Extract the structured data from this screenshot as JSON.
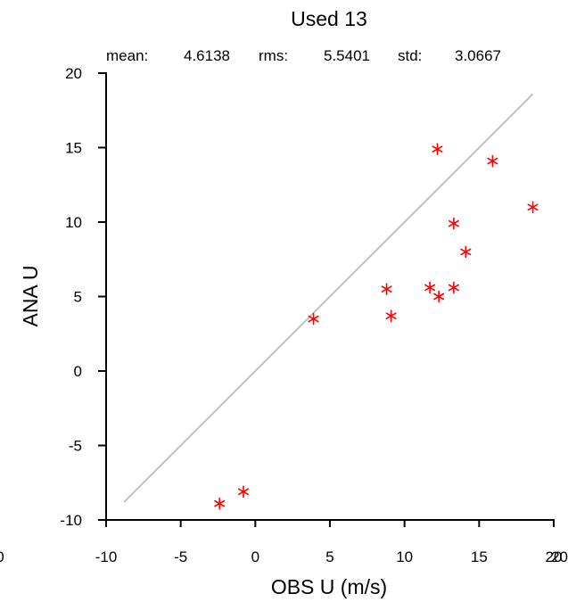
{
  "chart_data": {
    "type": "scatter",
    "title": "Used  13",
    "stats": {
      "mean_label": "mean:",
      "mean_value": "4.6138",
      "rms_label": "rms:",
      "rms_value": "5.5401",
      "std_label": "std:",
      "std_value": "3.0667"
    },
    "xlabel": "OBS U  (m/s)",
    "ylabel": "ANA U",
    "xlim": [
      -10,
      20
    ],
    "ylim": [
      -10,
      20
    ],
    "xticks": [
      "-10",
      "-5",
      "0",
      "5",
      "10",
      "15",
      "20"
    ],
    "yticks": [
      "-10",
      "-5",
      "0",
      "5",
      "10",
      "15",
      "20"
    ],
    "clipped_tick_labels": {
      "left": "0",
      "right": "20"
    },
    "reference_line": {
      "x": [
        -8.8,
        18.6
      ],
      "y": [
        -8.8,
        18.6
      ],
      "color": "#c0c0c0"
    },
    "marker": "asterisk",
    "marker_color": "#ff0000",
    "points": [
      {
        "x": -2.4,
        "y": -8.9
      },
      {
        "x": -0.8,
        "y": -8.1
      },
      {
        "x": 3.9,
        "y": 3.5
      },
      {
        "x": 8.8,
        "y": 5.5
      },
      {
        "x": 9.1,
        "y": 3.7
      },
      {
        "x": 11.7,
        "y": 5.6
      },
      {
        "x": 12.2,
        "y": 14.9
      },
      {
        "x": 12.3,
        "y": 5.0
      },
      {
        "x": 13.3,
        "y": 9.9
      },
      {
        "x": 13.3,
        "y": 5.6
      },
      {
        "x": 14.1,
        "y": 8.0
      },
      {
        "x": 15.9,
        "y": 14.1
      },
      {
        "x": 18.6,
        "y": 11.0
      }
    ]
  }
}
